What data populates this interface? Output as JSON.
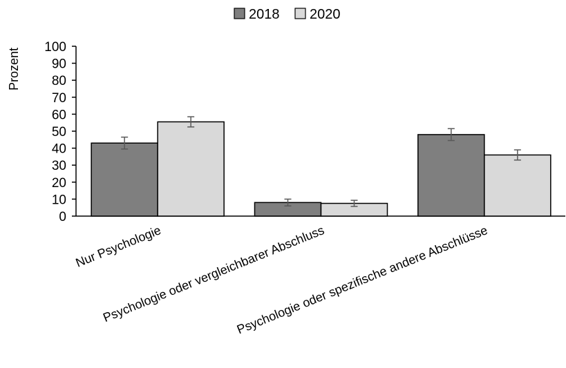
{
  "chart_data": {
    "type": "bar",
    "title": "",
    "xlabel": "",
    "ylabel": "Prozent",
    "ylim": [
      0,
      100
    ],
    "yticks": [
      "0",
      "10",
      "20",
      "30",
      "40",
      "50",
      "60",
      "70",
      "80",
      "90",
      "100"
    ],
    "categories": [
      "Nur Psychologie",
      "Psychologie oder vergleichbarer Abschluss",
      "Psychologie oder spezifische andere Abschlüsse"
    ],
    "series": [
      {
        "name": "2018",
        "color": "#7f7f7f",
        "values": [
          43,
          8,
          48
        ],
        "error": [
          3.5,
          2,
          3.5
        ]
      },
      {
        "name": "2020",
        "color": "#d9d9d9",
        "values": [
          55.5,
          7.5,
          36
        ],
        "error": [
          3,
          1.8,
          3
        ]
      }
    ],
    "grid": false,
    "legend_position": "top-center",
    "error_bars": true,
    "category_label_rotation": "diagonal"
  }
}
